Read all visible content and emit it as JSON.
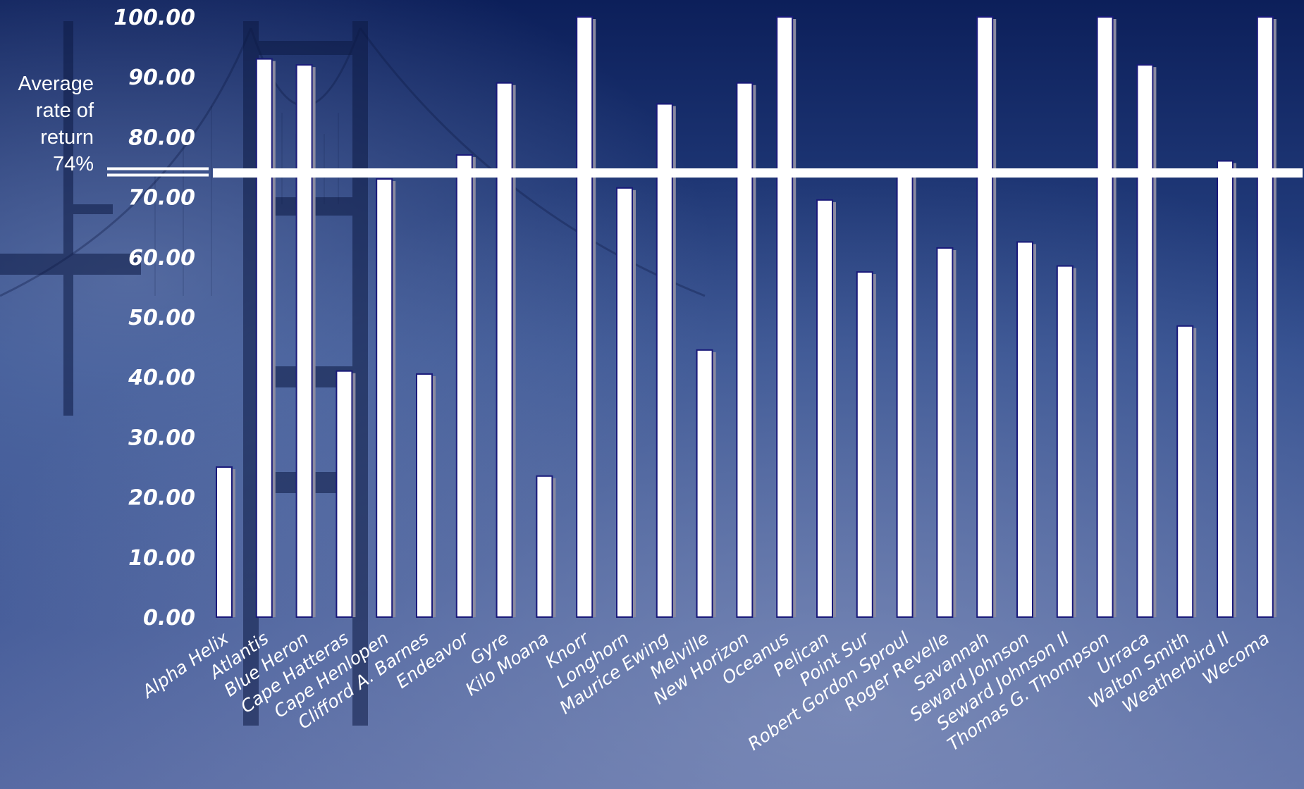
{
  "colors": {
    "background_top": "#0c1f5a",
    "background_bottom": "#4f65a0",
    "bar_fill": "#ffffff",
    "bar_outline": "#1a1a7a",
    "bar_shadow": "#8a8aa0",
    "average_line": "#ffffff",
    "text": "#ffffff"
  },
  "annotation": {
    "line1": "Average",
    "line2": "rate of",
    "line3": "return",
    "line4": "74%"
  },
  "chart_data": {
    "type": "bar",
    "title": "",
    "xlabel": "",
    "ylabel": "",
    "ylim": [
      0,
      100
    ],
    "y_ticks": [
      "0.00",
      "10.00",
      "20.00",
      "30.00",
      "40.00",
      "50.00",
      "60.00",
      "70.00",
      "80.00",
      "90.00",
      "100.00"
    ],
    "y_tick_values": [
      0,
      10,
      20,
      30,
      40,
      50,
      60,
      70,
      80,
      90,
      100
    ],
    "grid": false,
    "legend": "none",
    "reference_line": {
      "value": 74
    },
    "categories": [
      "Alpha Helix",
      "Atlantis",
      "Blue Heron",
      "Cape Hatteras",
      "Cape Henlopen",
      "Clifford A. Barnes",
      "Endeavor",
      "Gyre",
      "Kilo Moana",
      "Knorr",
      "Longhorn",
      "Maurice Ewing",
      "Melville",
      "New Horizon",
      "Oceanus",
      "Pelican",
      "Point Sur",
      "Robert Gordon Sproul",
      "Roger Revelle",
      "Savannah",
      "Seward Johnson",
      "Seward Johnson II",
      "Thomas G. Thompson",
      "Urraca",
      "Walton Smith",
      "Weatherbird II",
      "Wecoma"
    ],
    "values": [
      25,
      93,
      92,
      41,
      73,
      40.5,
      77,
      89,
      23.5,
      100,
      71.5,
      85.5,
      44.5,
      89,
      100,
      69.5,
      57.5,
      74,
      61.5,
      100,
      62.5,
      58.5,
      100,
      92,
      48.5,
      76,
      100
    ]
  }
}
